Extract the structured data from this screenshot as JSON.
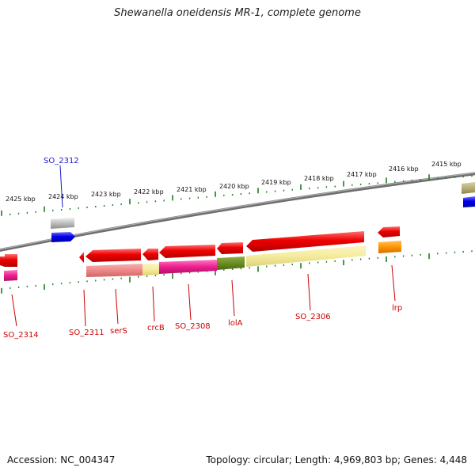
{
  "title": "Shewanella oneidensis MR-1, complete genome",
  "footer": {
    "accession": "Accession: NC_004347",
    "topology": "Topology: circular; Length: 4,969,803 bp; Genes: 4,448"
  },
  "colors": {
    "backbone": "#8a8a8a",
    "tick": "#1e7d1e",
    "label_red": "#cc0000",
    "label_blue": "#1a1acc"
  },
  "kbp_labels": [
    "2425 kbp",
    "2424 kbp",
    "2423 kbp",
    "2422 kbp",
    "2421 kbp",
    "2420 kbp",
    "2419 kbp",
    "2418 kbp",
    "2417 kbp",
    "2416 kbp",
    "2415 kbp"
  ],
  "gene_labels": {
    "so2312": "SO_2312",
    "so2314": "SO_2314",
    "so2311": "SO_2311",
    "sers": "serS",
    "crcb": "crcB",
    "so2308": "SO_2308",
    "iola": "lolA",
    "so2306": "SO_2306",
    "lrp": "lrp"
  }
}
